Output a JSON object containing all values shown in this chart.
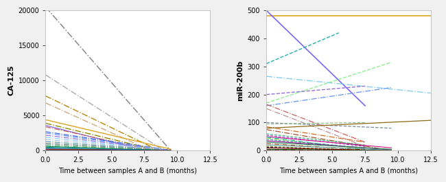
{
  "ca125_lines": [
    {
      "x": [
        0,
        9.5
      ],
      "y": [
        20500,
        0
      ],
      "color": "#888888",
      "ls": "dashdot",
      "lw": 1.1
    },
    {
      "x": [
        0,
        9.0
      ],
      "y": [
        10800,
        0
      ],
      "color": "#aaaaaa",
      "ls": "dashdot",
      "lw": 1.0
    },
    {
      "x": [
        0,
        8.5
      ],
      "y": [
        7800,
        100
      ],
      "color": "#b8860b",
      "ls": "dashdot",
      "lw": 1.0
    },
    {
      "x": [
        0,
        8.0
      ],
      "y": [
        6800,
        0
      ],
      "color": "#cdaa7d",
      "ls": "dashdot",
      "lw": 1.0
    },
    {
      "x": [
        0,
        9.5
      ],
      "y": [
        4400,
        200
      ],
      "color": "#daa520",
      "ls": "solid",
      "lw": 1.0
    },
    {
      "x": [
        0,
        8.5
      ],
      "y": [
        3900,
        50
      ],
      "color": "#8b8b00",
      "ls": "dashdot",
      "lw": 1.0
    },
    {
      "x": [
        0,
        7.5
      ],
      "y": [
        3600,
        50
      ],
      "color": "#7b68ee",
      "ls": "solid",
      "lw": 0.9
    },
    {
      "x": [
        0,
        8.0
      ],
      "y": [
        3400,
        100
      ],
      "color": "#cd5c5c",
      "ls": "dashdot",
      "lw": 0.9
    },
    {
      "x": [
        0,
        9.5
      ],
      "y": [
        2700,
        50
      ],
      "color": "#4169e1",
      "ls": "dashdot",
      "lw": 0.9
    },
    {
      "x": [
        0,
        9.5
      ],
      "y": [
        2500,
        30
      ],
      "color": "#6495ed",
      "ls": "dashdot",
      "lw": 0.9
    },
    {
      "x": [
        0,
        9.5
      ],
      "y": [
        2200,
        20
      ],
      "color": "#9370db",
      "ls": "dashdot",
      "lw": 0.9
    },
    {
      "x": [
        0,
        9.5
      ],
      "y": [
        1900,
        10
      ],
      "color": "#87cefa",
      "ls": "dashdot",
      "lw": 0.9
    },
    {
      "x": [
        0,
        9.5
      ],
      "y": [
        1600,
        10
      ],
      "color": "#b0c4de",
      "ls": "dashdot",
      "lw": 0.9
    },
    {
      "x": [
        0,
        9.5
      ],
      "y": [
        1300,
        5
      ],
      "color": "#5f9ea0",
      "ls": "dashdot",
      "lw": 0.9
    },
    {
      "x": [
        0,
        9.5
      ],
      "y": [
        1050,
        5
      ],
      "color": "#708090",
      "ls": "dashdot",
      "lw": 0.9
    },
    {
      "x": [
        0,
        9.5
      ],
      "y": [
        900,
        5
      ],
      "color": "#8fbc8f",
      "ls": "dashdot",
      "lw": 0.9
    },
    {
      "x": [
        0,
        9.5
      ],
      "y": [
        720,
        5
      ],
      "color": "#3cb371",
      "ls": "dashdot",
      "lw": 0.9
    },
    {
      "x": [
        0,
        9.5
      ],
      "y": [
        600,
        5
      ],
      "color": "#2e8b57",
      "ls": "solid",
      "lw": 0.8
    },
    {
      "x": [
        0,
        9.5
      ],
      "y": [
        480,
        5
      ],
      "color": "#008080",
      "ls": "solid",
      "lw": 0.8
    },
    {
      "x": [
        0,
        9.5
      ],
      "y": [
        380,
        5
      ],
      "color": "#20b2aa",
      "ls": "solid",
      "lw": 0.8
    },
    {
      "x": [
        0,
        9.5
      ],
      "y": [
        300,
        5
      ],
      "color": "#4682b4",
      "ls": "solid",
      "lw": 0.8
    },
    {
      "x": [
        0,
        9.5
      ],
      "y": [
        250,
        5
      ],
      "color": "#6a5acd",
      "ls": "solid",
      "lw": 0.8
    },
    {
      "x": [
        0,
        9.5
      ],
      "y": [
        200,
        5
      ],
      "color": "#8b4513",
      "ls": "solid",
      "lw": 0.8
    },
    {
      "x": [
        0,
        9.5
      ],
      "y": [
        160,
        3
      ],
      "color": "#a52a2a",
      "ls": "solid",
      "lw": 0.8
    },
    {
      "x": [
        0,
        9.5
      ],
      "y": [
        130,
        3
      ],
      "color": "#b8860b",
      "ls": "solid",
      "lw": 0.8
    },
    {
      "x": [
        0,
        9.5
      ],
      "y": [
        100,
        2
      ],
      "color": "#696969",
      "ls": "solid",
      "lw": 0.8
    },
    {
      "x": [
        0,
        9.5
      ],
      "y": [
        80,
        2
      ],
      "color": "#2f4f4f",
      "ls": "solid",
      "lw": 0.8
    },
    {
      "x": [
        0,
        9.5
      ],
      "y": [
        60,
        1
      ],
      "color": "#556b2f",
      "ls": "solid",
      "lw": 0.8
    },
    {
      "x": [
        0,
        9.5
      ],
      "y": [
        45,
        1
      ],
      "color": "#8b008b",
      "ls": "solid",
      "lw": 0.8
    },
    {
      "x": [
        0,
        9.5
      ],
      "y": [
        30,
        0
      ],
      "color": "#800000",
      "ls": "solid",
      "lw": 0.8
    },
    {
      "x": [
        0,
        9.5
      ],
      "y": [
        15,
        0
      ],
      "color": "#006400",
      "ls": "solid",
      "lw": 0.8
    },
    {
      "x": [
        0,
        9.5
      ],
      "y": [
        5,
        0
      ],
      "color": "#000080",
      "ls": "solid",
      "lw": 0.8
    }
  ],
  "mir200b_lines": [
    {
      "x": [
        0,
        12.5
      ],
      "y": [
        480,
        480
      ],
      "color": "#daa520",
      "ls": "solid",
      "lw": 1.2
    },
    {
      "x": [
        0,
        7.5
      ],
      "y": [
        500,
        160
      ],
      "color": "#7b68ee",
      "ls": "solid",
      "lw": 1.2
    },
    {
      "x": [
        0,
        5.5
      ],
      "y": [
        310,
        420
      ],
      "color": "#20b2aa",
      "ls": "dashed",
      "lw": 1.0
    },
    {
      "x": [
        0,
        12.5
      ],
      "y": [
        265,
        205
      ],
      "color": "#87ceeb",
      "ls": "dashdot",
      "lw": 1.0
    },
    {
      "x": [
        0,
        9.5
      ],
      "y": [
        170,
        315
      ],
      "color": "#90ee90",
      "ls": "dashed",
      "lw": 1.0
    },
    {
      "x": [
        0,
        7.5
      ],
      "y": [
        200,
        230
      ],
      "color": "#9370db",
      "ls": "dashed",
      "lw": 1.0
    },
    {
      "x": [
        0,
        9.5
      ],
      "y": [
        160,
        225
      ],
      "color": "#6495ed",
      "ls": "dashdot",
      "lw": 0.9
    },
    {
      "x": [
        0,
        7.5
      ],
      "y": [
        165,
        30
      ],
      "color": "#cd5c5c",
      "ls": "dashdot",
      "lw": 0.9
    },
    {
      "x": [
        0,
        7.5
      ],
      "y": [
        150,
        15
      ],
      "color": "#bc8f8f",
      "ls": "dashdot",
      "lw": 0.9
    },
    {
      "x": [
        0,
        9.5
      ],
      "y": [
        100,
        80
      ],
      "color": "#778899",
      "ls": "dashed",
      "lw": 0.9
    },
    {
      "x": [
        0,
        7.5
      ],
      "y": [
        95,
        100
      ],
      "color": "#8fbc8f",
      "ls": "dashed",
      "lw": 0.9
    },
    {
      "x": [
        0,
        7.5
      ],
      "y": [
        85,
        30
      ],
      "color": "#d2691e",
      "ls": "dashdot",
      "lw": 0.9
    },
    {
      "x": [
        0,
        12.5
      ],
      "y": [
        80,
        108
      ],
      "color": "#8b6914",
      "ls": "solid",
      "lw": 0.9
    },
    {
      "x": [
        0,
        9.5
      ],
      "y": [
        75,
        0
      ],
      "color": "#a0522d",
      "ls": "dashdot",
      "lw": 0.9
    },
    {
      "x": [
        0,
        7.5
      ],
      "y": [
        60,
        20
      ],
      "color": "#3cb371",
      "ls": "dashed",
      "lw": 0.8
    },
    {
      "x": [
        0,
        7.5
      ],
      "y": [
        55,
        15
      ],
      "color": "#9932cc",
      "ls": "dashed",
      "lw": 0.8
    },
    {
      "x": [
        0,
        9.5
      ],
      "y": [
        50,
        10
      ],
      "color": "#c71585",
      "ls": "solid",
      "lw": 0.8
    },
    {
      "x": [
        0,
        7.5
      ],
      "y": [
        48,
        5
      ],
      "color": "#00ced1",
      "ls": "dashdot",
      "lw": 0.8
    },
    {
      "x": [
        0,
        7.5
      ],
      "y": [
        45,
        5
      ],
      "color": "#9acd32",
      "ls": "dashdot",
      "lw": 0.8
    },
    {
      "x": [
        0,
        7.5
      ],
      "y": [
        40,
        10
      ],
      "color": "#4682b4",
      "ls": "dashed",
      "lw": 0.8
    },
    {
      "x": [
        0,
        9.5
      ],
      "y": [
        35,
        3
      ],
      "color": "#8b008b",
      "ls": "solid",
      "lw": 0.8
    },
    {
      "x": [
        0,
        9.5
      ],
      "y": [
        30,
        5
      ],
      "color": "#2e8b57",
      "ls": "solid",
      "lw": 0.8
    },
    {
      "x": [
        0,
        7.5
      ],
      "y": [
        25,
        3
      ],
      "color": "#8b4513",
      "ls": "dashdot",
      "lw": 0.8
    },
    {
      "x": [
        0,
        9.5
      ],
      "y": [
        20,
        2
      ],
      "color": "#5f9ea0",
      "ls": "solid",
      "lw": 0.8
    },
    {
      "x": [
        0,
        7.5
      ],
      "y": [
        15,
        1
      ],
      "color": "#808000",
      "ls": "dashed",
      "lw": 0.8
    },
    {
      "x": [
        0,
        7.5
      ],
      "y": [
        12,
        0
      ],
      "color": "#191970",
      "ls": "dashed",
      "lw": 0.8
    },
    {
      "x": [
        0,
        9.5
      ],
      "y": [
        10,
        0
      ],
      "color": "#800000",
      "ls": "solid",
      "lw": 0.8
    },
    {
      "x": [
        0,
        9.5
      ],
      "y": [
        5,
        0
      ],
      "color": "#006400",
      "ls": "solid",
      "lw": 0.8
    },
    {
      "x": [
        0,
        7.5
      ],
      "y": [
        3,
        0
      ],
      "color": "#8b0000",
      "ls": "dashdot",
      "lw": 0.8
    },
    {
      "x": [
        0,
        7.5
      ],
      "y": [
        1,
        0
      ],
      "color": "#404040",
      "ls": "solid",
      "lw": 0.8
    }
  ],
  "ca125_ylabel": "CA-125",
  "mir200b_ylabel": "miR-200b",
  "xlabel": "Time between samples A and B (months)",
  "ca125_ylim": [
    0,
    20000
  ],
  "mir200b_ylim": [
    0,
    500
  ],
  "ca125_yticks": [
    0,
    5000,
    10000,
    15000,
    20000
  ],
  "mir200b_yticks": [
    0,
    100,
    200,
    300,
    400,
    500
  ],
  "xlim": [
    0,
    12.5
  ],
  "xticks": [
    0.0,
    2.5,
    5.0,
    7.5,
    10.0,
    12.5
  ],
  "bg_color": "#ffffff",
  "border_color": "#bbbbbb",
  "fig_bg": "#f0f0f0"
}
